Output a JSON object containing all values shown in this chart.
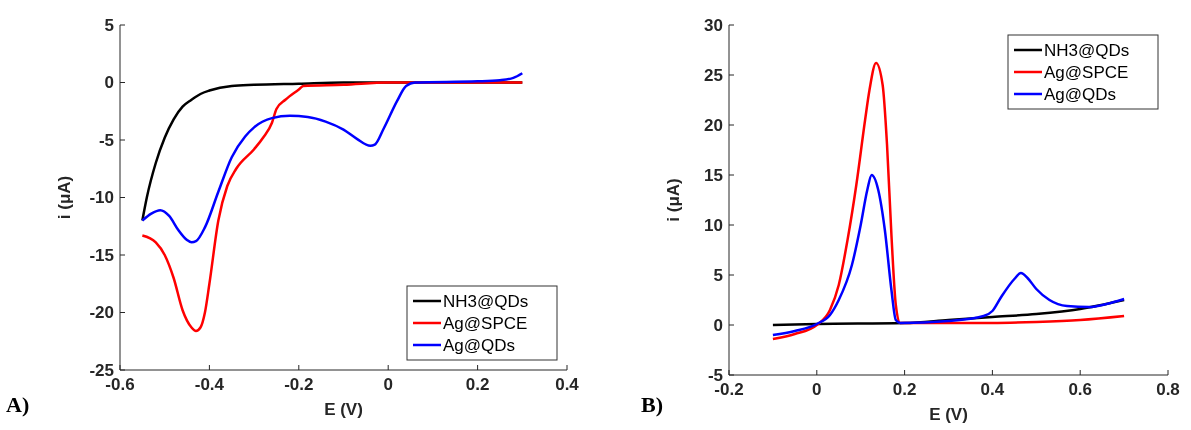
{
  "chart_data": [
    {
      "type": "line",
      "xlabel": "E (V)",
      "ylabel": "i (μA)",
      "annotations": [
        "A)"
      ],
      "xlim": [
        -0.6,
        0.4
      ],
      "xticks": [
        -0.6,
        -0.4,
        -0.2,
        0,
        0.2,
        0.4
      ],
      "ylim": [
        -25,
        5
      ],
      "yticks": [
        -25,
        -20,
        -15,
        -10,
        -5,
        0,
        5
      ],
      "grid": false,
      "legend": "bottom right",
      "series": [
        {
          "name": "NH3@QDs",
          "color": "#000000",
          "x": [
            -0.55,
            -0.54,
            -0.52,
            -0.5,
            -0.48,
            -0.46,
            -0.44,
            -0.42,
            -0.4,
            -0.35,
            -0.3,
            -0.2,
            -0.1,
            0,
            0.3
          ],
          "values": [
            -12,
            -10,
            -7,
            -4.8,
            -3.2,
            -2.1,
            -1.5,
            -1,
            -0.7,
            -0.3,
            -0.2,
            -0.1,
            0,
            0,
            0
          ]
        },
        {
          "name": "Ag@SPCE",
          "color": "#ff0000",
          "x": [
            -0.55,
            -0.52,
            -0.5,
            -0.48,
            -0.46,
            -0.44,
            -0.43,
            -0.42,
            -0.41,
            -0.4,
            -0.38,
            -0.36,
            -0.34,
            -0.3,
            -0.28,
            -0.26,
            -0.25,
            -0.23,
            -0.2,
            -0.19,
            -0.1,
            0,
            0.05,
            0.3
          ],
          "values": [
            -13.3,
            -13.9,
            -15,
            -17,
            -19.8,
            -21.3,
            -21.6,
            -21.3,
            -20,
            -17.5,
            -12,
            -9,
            -7.5,
            -5.8,
            -4.8,
            -3.5,
            -2.3,
            -1.5,
            -0.6,
            -0.3,
            -0.2,
            0,
            0,
            0
          ]
        },
        {
          "name": "Ag@QDs",
          "color": "#0000ff",
          "x": [
            -0.55,
            -0.53,
            -0.51,
            -0.49,
            -0.47,
            -0.45,
            -0.44,
            -0.43,
            -0.41,
            -0.38,
            -0.35,
            -0.32,
            -0.3,
            -0.26,
            -0.22,
            -0.18,
            -0.14,
            -0.1,
            -0.07,
            -0.04,
            -0.03,
            -0.01,
            0.02,
            0.04,
            0.06,
            0.2,
            0.25,
            0.28,
            0.3
          ],
          "values": [
            -12,
            -11.4,
            -11.1,
            -11.6,
            -12.8,
            -13.7,
            -13.9,
            -13.8,
            -12.6,
            -9.5,
            -6.5,
            -4.7,
            -3.9,
            -3.1,
            -2.9,
            -3,
            -3.4,
            -4.1,
            -4.9,
            -5.5,
            -5.4,
            -4,
            -1.6,
            -0.3,
            0,
            0.1,
            0.2,
            0.4,
            0.8
          ]
        }
      ]
    },
    {
      "type": "line",
      "xlabel": "E (V)",
      "ylabel": "i (μA)",
      "annotations": [
        "B)"
      ],
      "xlim": [
        -0.2,
        0.8
      ],
      "xticks": [
        -0.2,
        0,
        0.2,
        0.4,
        0.6,
        0.8
      ],
      "ylim": [
        -5,
        30
      ],
      "yticks": [
        -5,
        0,
        5,
        10,
        15,
        20,
        25,
        30
      ],
      "grid": false,
      "legend": "top right",
      "series": [
        {
          "name": "NH3@QDs",
          "color": "#000000",
          "x": [
            -0.1,
            0,
            0.2,
            0.3,
            0.4,
            0.5,
            0.6,
            0.7
          ],
          "values": [
            0,
            0.1,
            0.2,
            0.5,
            0.8,
            1.1,
            1.6,
            2.5
          ]
        },
        {
          "name": "Ag@SPCE",
          "color": "#ff0000",
          "x": [
            -0.1,
            -0.05,
            0,
            0.03,
            0.05,
            0.07,
            0.09,
            0.11,
            0.12,
            0.135,
            0.15,
            0.16,
            0.17,
            0.18,
            0.19,
            0.3,
            0.4,
            0.5,
            0.6,
            0.7
          ],
          "values": [
            -1.4,
            -0.9,
            0,
            1.5,
            4,
            8.5,
            14,
            20.5,
            23.5,
            26.2,
            24,
            18,
            9,
            2,
            0.2,
            0.2,
            0.2,
            0.3,
            0.5,
            0.9
          ]
        },
        {
          "name": "Ag@QDs",
          "color": "#0000ff",
          "x": [
            -0.1,
            -0.05,
            0,
            0.03,
            0.05,
            0.08,
            0.1,
            0.115,
            0.125,
            0.14,
            0.155,
            0.17,
            0.18,
            0.19,
            0.3,
            0.38,
            0.4,
            0.42,
            0.45,
            0.465,
            0.48,
            0.5,
            0.53,
            0.57,
            0.62,
            0.66,
            0.7
          ],
          "values": [
            -1,
            -0.6,
            0.1,
            1,
            2.5,
            6,
            10,
            13.5,
            15,
            13.5,
            9.5,
            3.5,
            0.5,
            0.2,
            0.4,
            0.9,
            1.4,
            2.8,
            4.6,
            5.2,
            4.7,
            3.6,
            2.5,
            1.9,
            1.8,
            2.1,
            2.6
          ]
        }
      ]
    }
  ]
}
